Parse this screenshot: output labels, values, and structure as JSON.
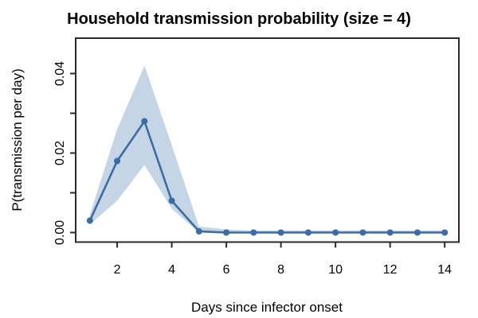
{
  "chart_data": {
    "type": "line",
    "title": "Household transmission probability (size = 4)",
    "xlabel": "Days since infector onset",
    "ylabel": "P(transmission per day)",
    "x": [
      1,
      2,
      3,
      4,
      5,
      6,
      7,
      8,
      9,
      10,
      11,
      12,
      13,
      14
    ],
    "series": [
      {
        "name": "estimate",
        "values": [
          0.003,
          0.018,
          0.028,
          0.008,
          0.0003,
          0,
          0,
          0,
          0,
          0,
          0,
          0,
          0,
          0
        ]
      },
      {
        "name": "ci_lower",
        "values": [
          0.002,
          0.008,
          0.017,
          0.006,
          0,
          0,
          0,
          0,
          0,
          0,
          0,
          0,
          0,
          0
        ]
      },
      {
        "name": "ci_upper",
        "values": [
          0.0045,
          0.026,
          0.042,
          0.022,
          0.0015,
          0.0008,
          0.0005,
          0.0005,
          0.0005,
          0.0005,
          0.0005,
          0.0005,
          0.0005,
          0.0005
        ]
      }
    ],
    "x_tick_values": [
      2,
      4,
      6,
      8,
      10,
      12,
      14
    ],
    "x_tick_labels": [
      "2",
      "4",
      "6",
      "8",
      "10",
      "12",
      "14"
    ],
    "y_tick_values": [
      0,
      0.01,
      0.02,
      0.03,
      0.04
    ],
    "y_tick_labels": [
      "0.00",
      "",
      "0.02",
      "",
      "0.04"
    ],
    "xlim": [
      0.48,
      14.52
    ],
    "ylim": [
      -0.0024,
      0.0489
    ],
    "grid": false,
    "legend_position": "none",
    "marker": "circle",
    "colors": {
      "line": "#3b6ca3",
      "band": "#c6d5e6",
      "axis": "#2a2a2a",
      "text": "#000000"
    }
  }
}
